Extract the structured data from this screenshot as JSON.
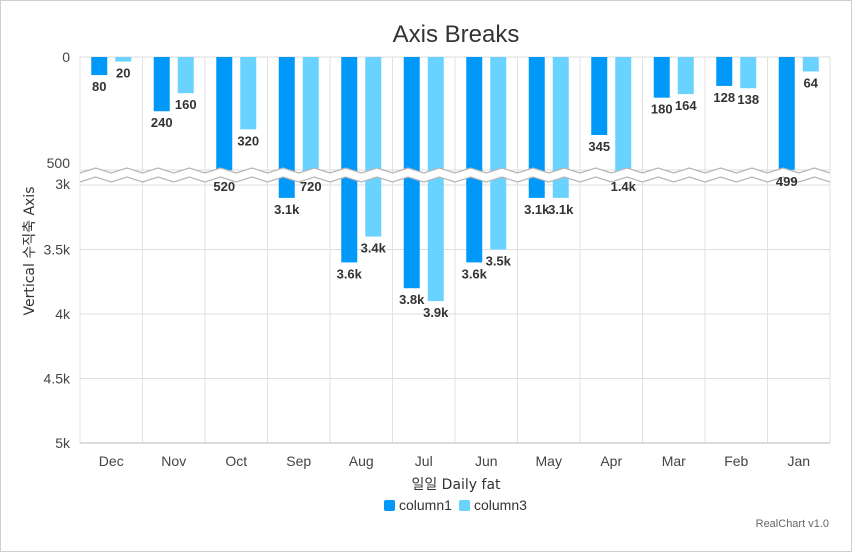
{
  "chart_data": {
    "type": "bar",
    "title": "Axis Breaks",
    "xlabel": "일일 Daily fat",
    "ylabel": "Vertical 수직축 Axis",
    "categories": [
      "Dec",
      "Nov",
      "Oct",
      "Sep",
      "Aug",
      "Jul",
      "Jun",
      "May",
      "Apr",
      "Mar",
      "Feb",
      "Jan"
    ],
    "series": [
      {
        "name": "column1",
        "color": "#0098f9",
        "values": [
          80,
          240,
          520,
          3100,
          3600,
          3800,
          3600,
          3100,
          345,
          180,
          128,
          499
        ],
        "labels": [
          "80",
          "240",
          "520",
          "3.1k",
          "3.6k",
          "3.8k",
          "3.6k",
          "3.1k",
          "345",
          "180",
          "128",
          "499"
        ]
      },
      {
        "name": "column3",
        "color": "#6ad2ff",
        "values": [
          20,
          160,
          320,
          720,
          3400,
          3900,
          3500,
          3100,
          1400,
          164,
          138,
          64
        ],
        "labels": [
          "20",
          "160",
          "320",
          "720",
          "3.4k",
          "3.9k",
          "3.5k",
          "3.1k",
          "1.4k",
          "164",
          "138",
          "64"
        ]
      }
    ],
    "y_reversed": true,
    "y_break": {
      "from": 500,
      "to": 3000
    },
    "y_ticks": [
      "0",
      "500",
      "3k",
      "3.5k",
      "4k",
      "4.5k",
      "5k"
    ],
    "ylim": [
      0,
      5000
    ],
    "grid": true,
    "legend": "bottom-center",
    "credit": "RealChart v1.0"
  }
}
